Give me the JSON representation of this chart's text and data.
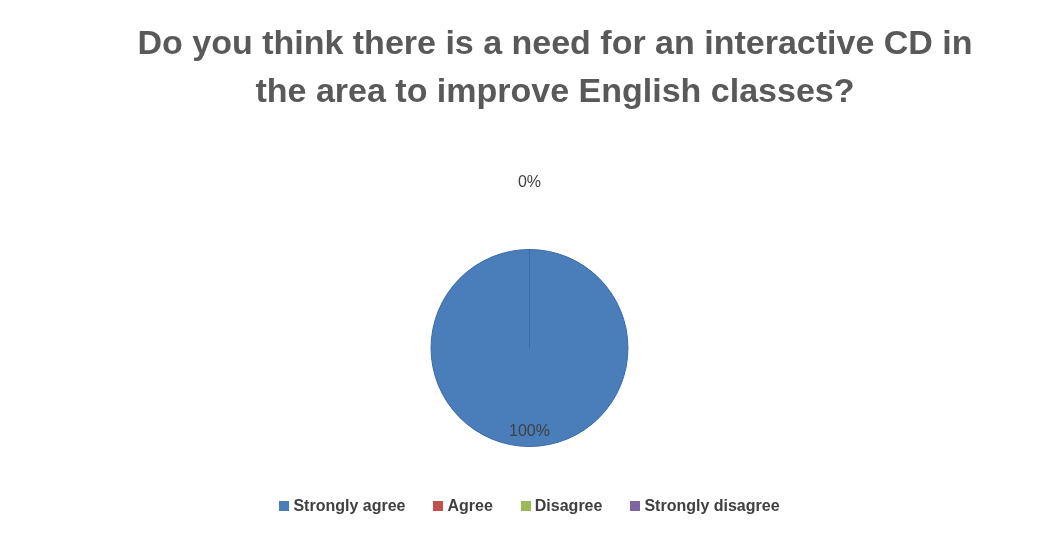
{
  "chart_data": {
    "type": "pie",
    "title": "Do you think there is a need for an interactive CD in the area to improve English classes?",
    "categories": [
      "Strongly agree",
      "Agree",
      "Disagree",
      "Strongly disagree"
    ],
    "values": [
      100,
      0,
      0,
      0
    ],
    "colors": [
      "#4a7ebb",
      "#c0504d",
      "#9bbb59",
      "#8064a2"
    ],
    "value_labels": [
      "100%",
      "0%",
      null,
      null
    ],
    "legend": "bottom"
  }
}
